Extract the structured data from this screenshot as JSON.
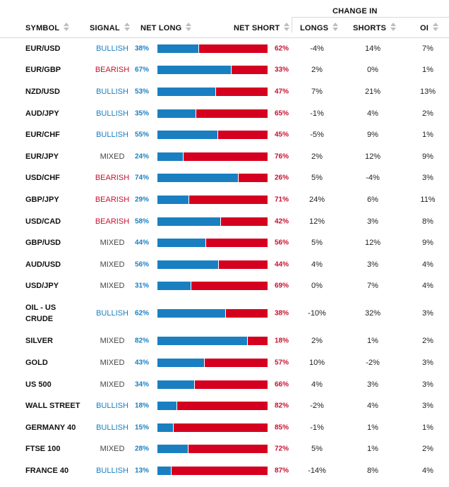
{
  "header": {
    "symbol": "SYMBOL",
    "signal": "SIGNAL",
    "net_long": "NET LONG",
    "net_short": "NET SHORT",
    "change_in": "CHANGE IN",
    "longs": "LONGS",
    "shorts": "SHORTS",
    "oi": "OI"
  },
  "colors": {
    "long": "#1a7fc1",
    "short": "#d5001f",
    "bullish": "#1a7fc1",
    "bearish": "#c8102e",
    "mixed": "#444444"
  },
  "rows": [
    {
      "symbol": "EUR/USD",
      "signal": "BULLISH",
      "net_long": "38%",
      "net_short": "62%",
      "long_frac": 0.38,
      "longs": "-4%",
      "shorts": "14%",
      "oi": "7%"
    },
    {
      "symbol": "EUR/GBP",
      "signal": "BEARISH",
      "net_long": "67%",
      "net_short": "33%",
      "long_frac": 0.67,
      "longs": "2%",
      "shorts": "0%",
      "oi": "1%"
    },
    {
      "symbol": "NZD/USD",
      "signal": "BULLISH",
      "net_long": "53%",
      "net_short": "47%",
      "long_frac": 0.53,
      "longs": "7%",
      "shorts": "21%",
      "oi": "13%"
    },
    {
      "symbol": "AUD/JPY",
      "signal": "BULLISH",
      "net_long": "35%",
      "net_short": "65%",
      "long_frac": 0.35,
      "longs": "-1%",
      "shorts": "4%",
      "oi": "2%"
    },
    {
      "symbol": "EUR/CHF",
      "signal": "BULLISH",
      "net_long": "55%",
      "net_short": "45%",
      "long_frac": 0.55,
      "longs": "-5%",
      "shorts": "9%",
      "oi": "1%"
    },
    {
      "symbol": "EUR/JPY",
      "signal": "MIXED",
      "net_long": "24%",
      "net_short": "76%",
      "long_frac": 0.24,
      "longs": "2%",
      "shorts": "12%",
      "oi": "9%"
    },
    {
      "symbol": "USD/CHF",
      "signal": "BEARISH",
      "net_long": "74%",
      "net_short": "26%",
      "long_frac": 0.74,
      "longs": "5%",
      "shorts": "-4%",
      "oi": "3%"
    },
    {
      "symbol": "GBP/JPY",
      "signal": "BEARISH",
      "net_long": "29%",
      "net_short": "71%",
      "long_frac": 0.29,
      "longs": "24%",
      "shorts": "6%",
      "oi": "11%"
    },
    {
      "symbol": "USD/CAD",
      "signal": "BEARISH",
      "net_long": "58%",
      "net_short": "42%",
      "long_frac": 0.58,
      "longs": "12%",
      "shorts": "3%",
      "oi": "8%"
    },
    {
      "symbol": "GBP/USD",
      "signal": "MIXED",
      "net_long": "44%",
      "net_short": "56%",
      "long_frac": 0.44,
      "longs": "5%",
      "shorts": "12%",
      "oi": "9%"
    },
    {
      "symbol": "AUD/USD",
      "signal": "MIXED",
      "net_long": "56%",
      "net_short": "44%",
      "long_frac": 0.56,
      "longs": "4%",
      "shorts": "3%",
      "oi": "4%"
    },
    {
      "symbol": "USD/JPY",
      "signal": "MIXED",
      "net_long": "31%",
      "net_short": "69%",
      "long_frac": 0.31,
      "longs": "0%",
      "shorts": "7%",
      "oi": "4%"
    },
    {
      "symbol": "OIL - US CRUDE",
      "signal": "BULLISH",
      "net_long": "62%",
      "net_short": "38%",
      "long_frac": 0.62,
      "longs": "-10%",
      "shorts": "32%",
      "oi": "3%"
    },
    {
      "symbol": "SILVER",
      "signal": "MIXED",
      "net_long": "82%",
      "net_short": "18%",
      "long_frac": 0.82,
      "longs": "2%",
      "shorts": "1%",
      "oi": "2%"
    },
    {
      "symbol": "GOLD",
      "signal": "MIXED",
      "net_long": "43%",
      "net_short": "57%",
      "long_frac": 0.43,
      "longs": "10%",
      "shorts": "-2%",
      "oi": "3%"
    },
    {
      "symbol": "US 500",
      "signal": "MIXED",
      "net_long": "34%",
      "net_short": "66%",
      "long_frac": 0.34,
      "longs": "4%",
      "shorts": "3%",
      "oi": "3%"
    },
    {
      "symbol": "WALL STREET",
      "signal": "BULLISH",
      "net_long": "18%",
      "net_short": "82%",
      "long_frac": 0.18,
      "longs": "-2%",
      "shorts": "4%",
      "oi": "3%"
    },
    {
      "symbol": "GERMANY 40",
      "signal": "BULLISH",
      "net_long": "15%",
      "net_short": "85%",
      "long_frac": 0.15,
      "longs": "-1%",
      "shorts": "1%",
      "oi": "1%"
    },
    {
      "symbol": "FTSE 100",
      "signal": "MIXED",
      "net_long": "28%",
      "net_short": "72%",
      "long_frac": 0.28,
      "longs": "5%",
      "shorts": "1%",
      "oi": "2%"
    },
    {
      "symbol": "FRANCE 40",
      "signal": "BULLISH",
      "net_long": "13%",
      "net_short": "87%",
      "long_frac": 0.13,
      "longs": "-14%",
      "shorts": "8%",
      "oi": "4%"
    }
  ]
}
